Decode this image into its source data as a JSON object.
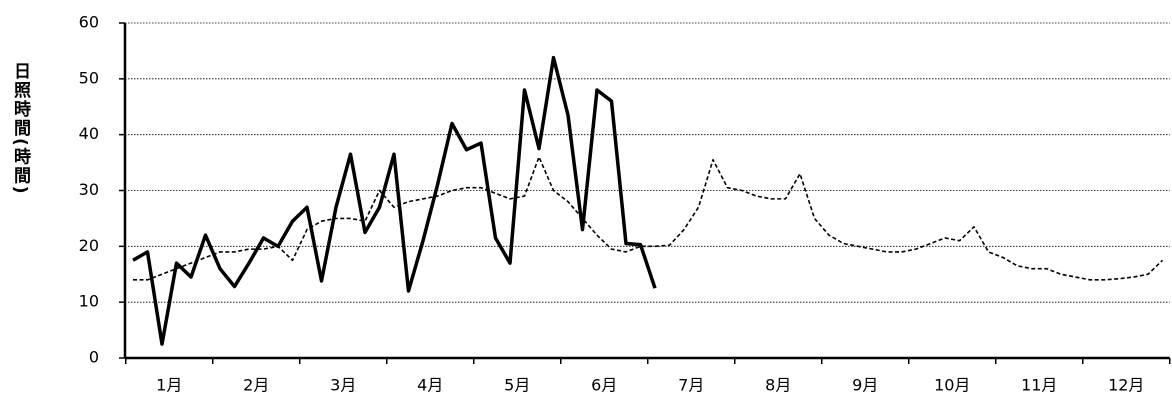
{
  "chart_data": {
    "type": "line",
    "y_label": "日照時間(時間)",
    "x_labels": [
      "1月",
      "2月",
      "3月",
      "4月",
      "5月",
      "6月",
      "7月",
      "8月",
      "9月",
      "10月",
      "11月",
      "12月"
    ],
    "ylim": [
      0,
      60
    ],
    "yticks": [
      0,
      10,
      20,
      30,
      40,
      50,
      60
    ],
    "grid": true,
    "series": [
      {
        "color": "#000000",
        "style": "solid",
        "values": [
          17.5,
          19,
          2.5,
          17,
          14.5,
          22,
          16,
          12.8,
          17,
          21.5,
          20,
          24.5,
          27,
          13.8,
          27,
          36.5,
          22.5,
          27,
          36.5,
          12,
          21,
          31,
          42,
          37.3,
          38.5,
          21.5,
          17,
          48,
          37.5,
          53.8,
          43.5,
          23,
          48,
          46,
          20.5,
          20.3,
          12.5,
          null,
          null,
          null,
          null,
          null,
          null,
          null,
          null,
          null,
          null,
          null,
          null,
          null,
          null,
          null,
          null,
          null,
          null,
          null,
          null,
          null,
          null,
          null,
          null,
          null,
          null,
          null,
          null,
          null,
          null,
          null,
          null,
          null,
          null,
          null
        ]
      },
      {
        "color": "#000000",
        "style": "dashed",
        "values": [
          14,
          14,
          15,
          16,
          17,
          18,
          19,
          19,
          19.5,
          19.5,
          20,
          17.5,
          23,
          24.5,
          25,
          25,
          24.5,
          30,
          27,
          28,
          28.5,
          29,
          30,
          30.5,
          30.5,
          29.5,
          28.5,
          29,
          36,
          30,
          28,
          25,
          22,
          19.5,
          19,
          20,
          20,
          20.2,
          23,
          27,
          35.5,
          30.5,
          30,
          29,
          28.5,
          28.5,
          33,
          25,
          22,
          20.5,
          20,
          19.5,
          19,
          19,
          19.5,
          20.5,
          21.5,
          21,
          23.5,
          19,
          18,
          16.5,
          16,
          16,
          15,
          14.5,
          14,
          14,
          14.2,
          14.5,
          15,
          17.5
        ]
      }
    ]
  }
}
